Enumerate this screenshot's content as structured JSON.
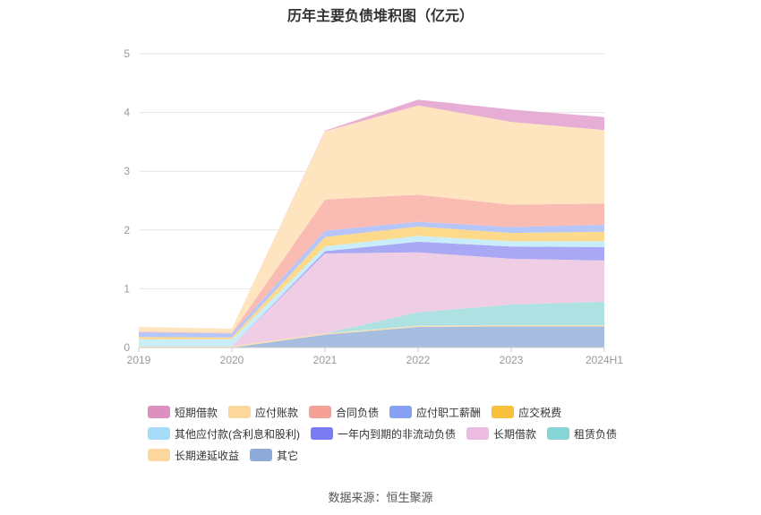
{
  "chart_data": {
    "type": "area",
    "stacked": true,
    "title": "历年主要负债堆积图（亿元）",
    "categories": [
      "2019",
      "2020",
      "2021",
      "2022",
      "2023",
      "2024H1"
    ],
    "ylim": [
      0,
      5
    ],
    "yticks": [
      0,
      1,
      2,
      3,
      4,
      5
    ],
    "grid": true,
    "legend_position": "bottom",
    "series": [
      {
        "name": "其它",
        "color": "#a7bddf",
        "values": [
          0.0,
          0.0,
          0.22,
          0.35,
          0.36,
          0.36
        ]
      },
      {
        "name": "长期递延收益",
        "color": "#fde0ac",
        "values": [
          0.02,
          0.02,
          0.02,
          0.02,
          0.02,
          0.02
        ]
      },
      {
        "name": "租赁负债",
        "color": "#aee2e2",
        "values": [
          0.0,
          0.0,
          0.0,
          0.23,
          0.35,
          0.4
        ]
      },
      {
        "name": "长期借款",
        "color": "#efcde5",
        "values": [
          0.0,
          0.0,
          1.36,
          1.02,
          0.78,
          0.7
        ]
      },
      {
        "name": "一年内到期的非流动负债",
        "color": "#a8a8f5",
        "values": [
          0.0,
          0.0,
          0.04,
          0.18,
          0.21,
          0.23
        ]
      },
      {
        "name": "其他应付款(含利息和股利)",
        "color": "#c9eef9",
        "values": [
          0.12,
          0.12,
          0.08,
          0.1,
          0.09,
          0.1
        ]
      },
      {
        "name": "应交税费",
        "color": "#fdd98c",
        "values": [
          0.04,
          0.03,
          0.16,
          0.16,
          0.14,
          0.16
        ]
      },
      {
        "name": "应付职工薪酬",
        "color": "#b7c6f8",
        "values": [
          0.08,
          0.07,
          0.11,
          0.08,
          0.1,
          0.12
        ]
      },
      {
        "name": "合同负债",
        "color": "#fabbb3",
        "values": [
          0.01,
          0.01,
          0.53,
          0.46,
          0.38,
          0.36
        ]
      },
      {
        "name": "应付账款",
        "color": "#fee5bf",
        "values": [
          0.08,
          0.07,
          1.16,
          1.52,
          1.41,
          1.25
        ]
      },
      {
        "name": "短期借款",
        "color": "#e6aed4",
        "values": [
          0.0,
          0.0,
          0.01,
          0.1,
          0.21,
          0.22
        ]
      }
    ]
  },
  "legend": {
    "rows": [
      [
        {
          "label": "短期借款",
          "color": "#dd8fc0"
        },
        {
          "label": "应付账款",
          "color": "#fcd79b"
        },
        {
          "label": "合同负债",
          "color": "#f5a197"
        },
        {
          "label": "应付职工薪酬",
          "color": "#87a0f3"
        },
        {
          "label": "应交税费",
          "color": "#f9c03b"
        }
      ],
      [
        {
          "label": "其他应付款(含利息和股利)",
          "color": "#a6dcf8"
        },
        {
          "label": "一年内到期的非流动负债",
          "color": "#7b7cf3"
        },
        {
          "label": "长期借款",
          "color": "#ebbcdd"
        },
        {
          "label": "租赁负债",
          "color": "#86d6d3"
        }
      ],
      [
        {
          "label": "长期递延收益",
          "color": "#fcd89e"
        },
        {
          "label": "其它",
          "color": "#8eaad8"
        }
      ]
    ]
  },
  "source": "数据来源：恒生聚源"
}
